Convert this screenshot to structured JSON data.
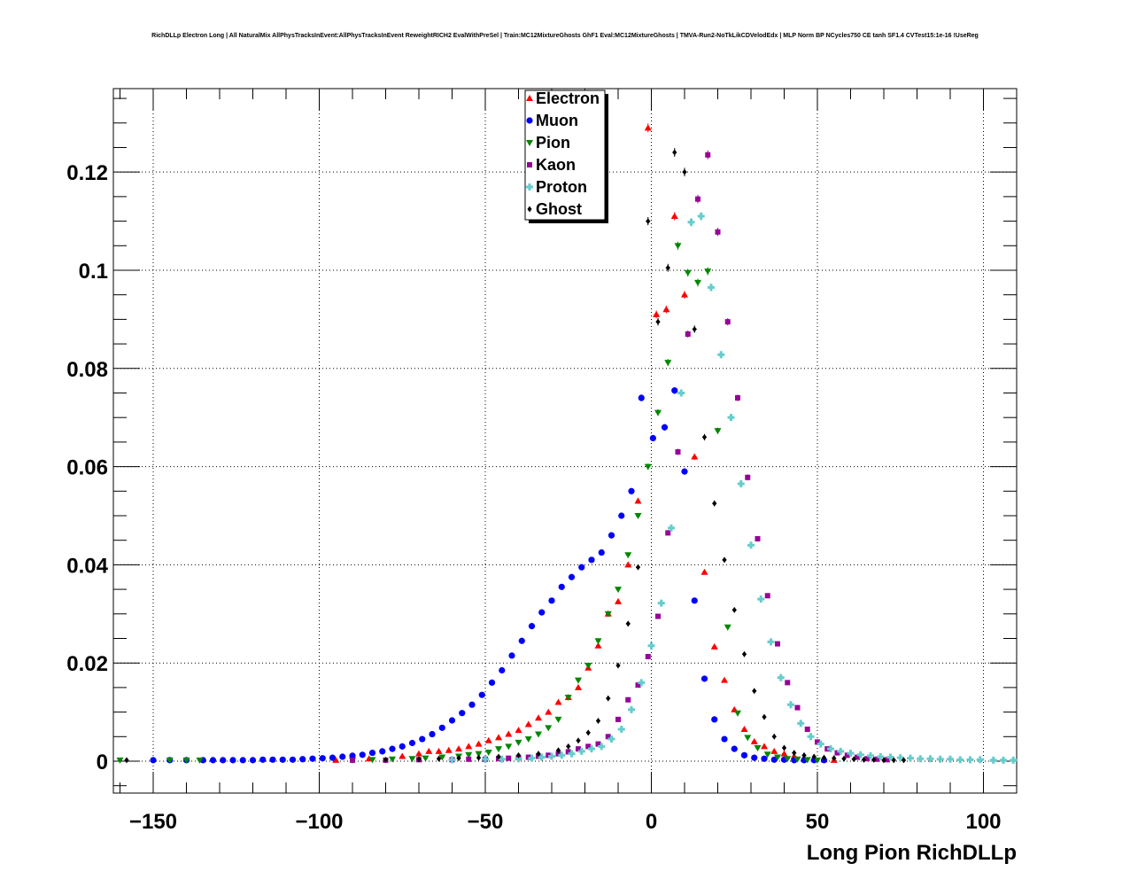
{
  "chart_data": {
    "type": "scatter",
    "title": "RichDLLp Electron Long | All NaturalMix AllPhysTracksInEvent:AllPhysTracksInEvent ReweightRICH2 EvalWithPreSel | Train:MC12MixtureGhosts GhF1 Eval:MC12MixtureGhosts | TMVA-Run2-NoTkLikCDVelodEdx | MLP Norm BP NCycles750 CE tanh SF1.4 CVTest15:1e-16 !UseReg",
    "xlabel": "Long Pion RichDLLp",
    "ylabel": "",
    "xlim": [
      -162,
      110
    ],
    "ylim": [
      -0.0065,
      0.137
    ],
    "grid": true,
    "legend_position": "top-center",
    "x_ticks": [
      -150,
      -100,
      -50,
      0,
      50,
      100
    ],
    "x_tick_labels": [
      "−150",
      "−100",
      "−50",
      "0",
      "50",
      "100"
    ],
    "y_ticks": [
      0,
      0.02,
      0.04,
      0.06,
      0.08,
      0.1,
      0.12
    ],
    "y_tick_labels": [
      "0",
      "0.02",
      "0.04",
      "0.06",
      "0.08",
      "0.1",
      "0.12"
    ],
    "series": [
      {
        "name": "Electron",
        "color": "#ff0000",
        "marker": "triangle-up",
        "points": [
          [
            -95,
            0.0002
          ],
          [
            -85,
            0.0005
          ],
          [
            -75,
            0.001
          ],
          [
            -70,
            0.0015
          ],
          [
            -67,
            0.002
          ],
          [
            -64,
            0.002
          ],
          [
            -61,
            0.0022
          ],
          [
            -58,
            0.0025
          ],
          [
            -55,
            0.003
          ],
          [
            -52,
            0.0035
          ],
          [
            -49,
            0.0042
          ],
          [
            -46,
            0.0048
          ],
          [
            -43,
            0.0055
          ],
          [
            -40,
            0.0063
          ],
          [
            -37,
            0.0075
          ],
          [
            -34,
            0.0088
          ],
          [
            -31,
            0.01
          ],
          [
            -28,
            0.012
          ],
          [
            -25,
            0.013
          ],
          [
            -22,
            0.015
          ],
          [
            -19,
            0.019
          ],
          [
            -16,
            0.0235
          ],
          [
            -13,
            0.03
          ],
          [
            -10,
            0.0325
          ],
          [
            -7,
            0.04
          ],
          [
            -4,
            0.053
          ],
          [
            -1,
            0.129
          ],
          [
            1.5,
            0.091
          ],
          [
            4.5,
            0.092
          ],
          [
            7,
            0.111
          ],
          [
            10,
            0.095
          ],
          [
            13,
            0.062
          ],
          [
            16,
            0.0385
          ],
          [
            19,
            0.0233
          ],
          [
            22,
            0.0165
          ],
          [
            25,
            0.0105
          ],
          [
            28,
            0.0065
          ],
          [
            31,
            0.004
          ],
          [
            34,
            0.003
          ],
          [
            37,
            0.002
          ],
          [
            40,
            0.0015
          ],
          [
            43,
            0.001
          ],
          [
            46,
            0.0007
          ],
          [
            49,
            0.0005
          ],
          [
            52,
            0.0003
          ],
          [
            55,
            0.0002
          ]
        ]
      },
      {
        "name": "Muon",
        "color": "#0000ff",
        "marker": "circle",
        "points": [
          [
            -150,
            0.0002
          ],
          [
            -145,
            0.0002
          ],
          [
            -140,
            0.0002
          ],
          [
            -135,
            0.0002
          ],
          [
            -132,
            0.0002
          ],
          [
            -129,
            0.0002
          ],
          [
            -126,
            0.0002
          ],
          [
            -123,
            0.0002
          ],
          [
            -120,
            0.0002
          ],
          [
            -117,
            0.0003
          ],
          [
            -114,
            0.0003
          ],
          [
            -111,
            0.0003
          ],
          [
            -108,
            0.0003
          ],
          [
            -105,
            0.0004
          ],
          [
            -102,
            0.0005
          ],
          [
            -99,
            0.0006
          ],
          [
            -96,
            0.0007
          ],
          [
            -93,
            0.0009
          ],
          [
            -90,
            0.0011
          ],
          [
            -87,
            0.0013
          ],
          [
            -84,
            0.0017
          ],
          [
            -81,
            0.002
          ],
          [
            -78,
            0.0025
          ],
          [
            -75,
            0.003
          ],
          [
            -72,
            0.0037
          ],
          [
            -69,
            0.0045
          ],
          [
            -66,
            0.0055
          ],
          [
            -63,
            0.0068
          ],
          [
            -60,
            0.0083
          ],
          [
            -57,
            0.0098
          ],
          [
            -54,
            0.0115
          ],
          [
            -51,
            0.0135
          ],
          [
            -48,
            0.016
          ],
          [
            -45,
            0.0185
          ],
          [
            -42,
            0.0215
          ],
          [
            -39,
            0.0245
          ],
          [
            -36,
            0.0275
          ],
          [
            -33,
            0.0303
          ],
          [
            -30,
            0.0327
          ],
          [
            -27,
            0.0355
          ],
          [
            -24,
            0.0375
          ],
          [
            -21,
            0.0395
          ],
          [
            -18,
            0.041
          ],
          [
            -15,
            0.0425
          ],
          [
            -12,
            0.046
          ],
          [
            -9,
            0.05
          ],
          [
            -6,
            0.055
          ],
          [
            -3,
            0.074
          ],
          [
            0.5,
            0.0658
          ],
          [
            4,
            0.068
          ],
          [
            7,
            0.0755
          ],
          [
            10,
            0.059
          ],
          [
            13,
            0.0327
          ],
          [
            16,
            0.0168
          ],
          [
            19,
            0.0085
          ],
          [
            22,
            0.0045
          ],
          [
            25,
            0.0025
          ],
          [
            28,
            0.0012
          ],
          [
            31,
            0.0007
          ],
          [
            34,
            0.0005
          ],
          [
            37,
            0.0003
          ],
          [
            40,
            0.0003
          ],
          [
            43,
            0.0002
          ],
          [
            46,
            0.0002
          ],
          [
            49,
            0.0002
          ],
          [
            52,
            0.0002
          ]
        ]
      },
      {
        "name": "Pion",
        "color": "#008800",
        "marker": "triangle-down",
        "points": [
          [
            -160,
            0.0002
          ],
          [
            -145,
            0.0002
          ],
          [
            -140,
            0.0002
          ],
          [
            -136,
            0.0002
          ],
          [
            -90,
            0.0002
          ],
          [
            -84,
            0.0003
          ],
          [
            -78,
            0.0004
          ],
          [
            -72,
            0.0005
          ],
          [
            -68,
            0.0006
          ],
          [
            -63,
            0.0008
          ],
          [
            -58,
            0.001
          ],
          [
            -55,
            0.0013
          ],
          [
            -52,
            0.0015
          ],
          [
            -49,
            0.0018
          ],
          [
            -46,
            0.0025
          ],
          [
            -43,
            0.003
          ],
          [
            -40,
            0.0038
          ],
          [
            -37,
            0.0045
          ],
          [
            -34,
            0.0055
          ],
          [
            -31,
            0.0068
          ],
          [
            -28,
            0.0085
          ],
          [
            -25,
            0.013
          ],
          [
            -22,
            0.0165
          ],
          [
            -19,
            0.0195
          ],
          [
            -16,
            0.0245
          ],
          [
            -13,
            0.03
          ],
          [
            -10,
            0.035
          ],
          [
            -7,
            0.042
          ],
          [
            -4,
            0.05
          ],
          [
            -1,
            0.06
          ],
          [
            2,
            0.071
          ],
          [
            5,
            0.0812
          ],
          [
            8,
            0.105
          ],
          [
            11,
            0.0995
          ],
          [
            14,
            0.0975
          ],
          [
            17,
            0.0998
          ],
          [
            20,
            0.0673
          ],
          [
            23,
            0.0273
          ],
          [
            26,
            0.0098
          ],
          [
            29,
            0.0048
          ],
          [
            32,
            0.0027
          ],
          [
            35,
            0.0014
          ],
          [
            38,
            0.0008
          ],
          [
            41,
            0.0005
          ],
          [
            44,
            0.0004
          ],
          [
            47,
            0.0003
          ],
          [
            50,
            0.0002
          ]
        ]
      },
      {
        "name": "Kaon",
        "color": "#990099",
        "marker": "square",
        "points": [
          [
            -90,
            0.0002
          ],
          [
            -80,
            0.0002
          ],
          [
            -70,
            0.0003
          ],
          [
            -60,
            0.0003
          ],
          [
            -55,
            0.0004
          ],
          [
            -50,
            0.0004
          ],
          [
            -46,
            0.0005
          ],
          [
            -43,
            0.0006
          ],
          [
            -40,
            0.0007
          ],
          [
            -37,
            0.0008
          ],
          [
            -34,
            0.001
          ],
          [
            -31,
            0.0012
          ],
          [
            -28,
            0.0015
          ],
          [
            -25,
            0.0019
          ],
          [
            -22,
            0.0025
          ],
          [
            -19,
            0.003
          ],
          [
            -16,
            0.0035
          ],
          [
            -13,
            0.005
          ],
          [
            -10,
            0.0085
          ],
          [
            -7,
            0.0125
          ],
          [
            -4,
            0.0155
          ],
          [
            -1,
            0.0213
          ],
          [
            2,
            0.0295
          ],
          [
            5,
            0.0465
          ],
          [
            8,
            0.063
          ],
          [
            11,
            0.087
          ],
          [
            14,
            0.1145
          ],
          [
            17,
            0.1235
          ],
          [
            20,
            0.1078
          ],
          [
            23,
            0.0895
          ],
          [
            26,
            0.074
          ],
          [
            29,
            0.0578
          ],
          [
            32,
            0.0453
          ],
          [
            35,
            0.0337
          ],
          [
            38,
            0.0239
          ],
          [
            41,
            0.016
          ],
          [
            44,
            0.0109
          ],
          [
            47,
            0.0065
          ],
          [
            50,
            0.0039
          ],
          [
            53,
            0.0025
          ],
          [
            56,
            0.0017
          ],
          [
            59,
            0.0012
          ],
          [
            62,
            0.0008
          ],
          [
            65,
            0.0005
          ],
          [
            68,
            0.0004
          ],
          [
            71,
            0.0003
          ]
        ]
      },
      {
        "name": "Proton",
        "color": "#66cccc",
        "marker": "cross",
        "points": [
          [
            -60,
            0.0003
          ],
          [
            -50,
            0.0004
          ],
          [
            -45,
            0.0004
          ],
          [
            -40,
            0.0005
          ],
          [
            -36,
            0.0006
          ],
          [
            -33,
            0.0008
          ],
          [
            -30,
            0.001
          ],
          [
            -27,
            0.0012
          ],
          [
            -24,
            0.0015
          ],
          [
            -21,
            0.002
          ],
          [
            -18,
            0.0025
          ],
          [
            -15,
            0.003
          ],
          [
            -12,
            0.0045
          ],
          [
            -9,
            0.0065
          ],
          [
            -6,
            0.0105
          ],
          [
            -3,
            0.016
          ],
          [
            0,
            0.0235
          ],
          [
            3,
            0.0322
          ],
          [
            6,
            0.0475
          ],
          [
            9,
            0.075
          ],
          [
            12,
            0.1098
          ],
          [
            15,
            0.111
          ],
          [
            18,
            0.0965
          ],
          [
            21,
            0.0828
          ],
          [
            24,
            0.07
          ],
          [
            27,
            0.0565
          ],
          [
            30,
            0.044
          ],
          [
            33,
            0.033
          ],
          [
            36,
            0.0243
          ],
          [
            39,
            0.017
          ],
          [
            42,
            0.0115
          ],
          [
            45,
            0.0077
          ],
          [
            48,
            0.005
          ],
          [
            51,
            0.0035
          ],
          [
            54,
            0.0025
          ],
          [
            57,
            0.002
          ],
          [
            60,
            0.0016
          ],
          [
            63,
            0.0013
          ],
          [
            66,
            0.0011
          ],
          [
            69,
            0.0009
          ],
          [
            72,
            0.0008
          ],
          [
            75,
            0.0007
          ],
          [
            78,
            0.0006
          ],
          [
            81,
            0.0005
          ],
          [
            84,
            0.0005
          ],
          [
            87,
            0.0004
          ],
          [
            90,
            0.0004
          ],
          [
            93,
            0.0003
          ],
          [
            96,
            0.0003
          ],
          [
            99,
            0.0003
          ],
          [
            103,
            0.0002
          ],
          [
            106,
            0.0002
          ],
          [
            109,
            0.0002
          ]
        ]
      },
      {
        "name": "Ghost",
        "color": "#000000",
        "marker": "diamond",
        "points": [
          [
            -158,
            0.0002
          ],
          [
            -80,
            0.0003
          ],
          [
            -70,
            0.0004
          ],
          [
            -64,
            0.0005
          ],
          [
            -58,
            0.0006
          ],
          [
            -52,
            0.0007
          ],
          [
            -46,
            0.0009
          ],
          [
            -40,
            0.0012
          ],
          [
            -34,
            0.0015
          ],
          [
            -28,
            0.0022
          ],
          [
            -25,
            0.003
          ],
          [
            -22,
            0.0042
          ],
          [
            -19,
            0.0058
          ],
          [
            -16,
            0.0082
          ],
          [
            -13,
            0.0128
          ],
          [
            -10,
            0.0195
          ],
          [
            -7,
            0.028
          ],
          [
            -4,
            0.0395
          ],
          [
            -1,
            0.11
          ],
          [
            2,
            0.0895
          ],
          [
            5,
            0.1005
          ],
          [
            7,
            0.124
          ],
          [
            10,
            0.12
          ],
          [
            13,
            0.088
          ],
          [
            16,
            0.066
          ],
          [
            19,
            0.0525
          ],
          [
            22,
            0.041
          ],
          [
            25,
            0.0308
          ],
          [
            28,
            0.0218
          ],
          [
            31,
            0.0143
          ],
          [
            34,
            0.009
          ],
          [
            37,
            0.005
          ],
          [
            40,
            0.0027
          ],
          [
            43,
            0.0017
          ],
          [
            46,
            0.0012
          ],
          [
            49,
            0.0009
          ],
          [
            52,
            0.0007
          ],
          [
            55,
            0.0006
          ],
          [
            58,
            0.0005
          ],
          [
            61,
            0.0004
          ],
          [
            64,
            0.0003
          ],
          [
            67,
            0.0003
          ],
          [
            70,
            0.0002
          ],
          [
            73,
            0.0002
          ],
          [
            76,
            0.0002
          ]
        ]
      }
    ]
  }
}
